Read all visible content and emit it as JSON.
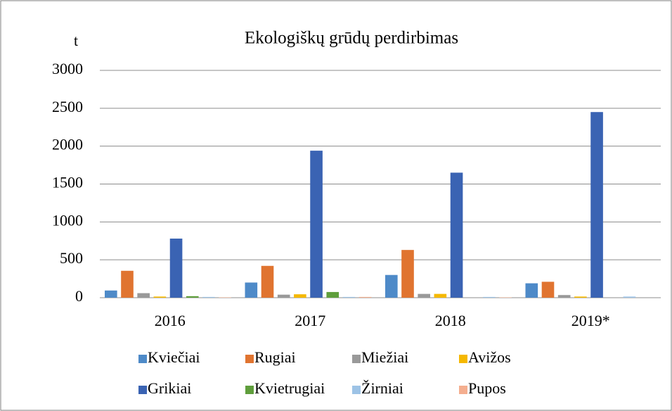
{
  "chart_data": {
    "type": "bar",
    "title": "Ekologiškų grūdų perdirbimas",
    "y_label": "t",
    "categories": [
      "2016",
      "2017",
      "2018",
      "2019*"
    ],
    "series": [
      {
        "name": "Kviečiai",
        "color": "#4e8ac8",
        "values": [
          95,
          200,
          300,
          190
        ]
      },
      {
        "name": "Rugiai",
        "color": "#e07430",
        "values": [
          355,
          420,
          630,
          210
        ]
      },
      {
        "name": "Miežiai",
        "color": "#999999",
        "values": [
          60,
          40,
          50,
          35
        ]
      },
      {
        "name": "Avižos",
        "color": "#f5b800",
        "values": [
          15,
          45,
          50,
          15
        ]
      },
      {
        "name": "Grikiai",
        "color": "#3a63b3",
        "values": [
          780,
          1940,
          1650,
          2450
        ]
      },
      {
        "name": "Kvietrugiai",
        "color": "#5f9e3c",
        "values": [
          20,
          75,
          0,
          0
        ]
      },
      {
        "name": "Žirniai",
        "color": "#9dc3e6",
        "values": [
          10,
          10,
          10,
          15
        ]
      },
      {
        "name": "Pupos",
        "color": "#f4ae8f",
        "values": [
          5,
          10,
          5,
          0
        ]
      }
    ],
    "ylim": [
      0,
      3000
    ],
    "yticks": [
      0,
      500,
      1000,
      1500,
      2000,
      2500,
      3000
    ],
    "grid": true,
    "legend": "bottom"
  }
}
